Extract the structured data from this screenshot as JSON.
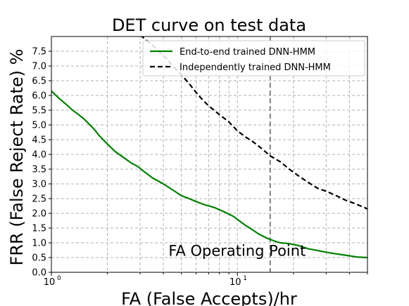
{
  "chart_data": {
    "type": "line",
    "title": "DET curve on test data",
    "xlabel": "FA (False Accepts)/hr",
    "ylabel": "FRR (False Reject Rate) %",
    "xscale": "log",
    "xlim": [
      1,
      50
    ],
    "ylim": [
      0,
      8
    ],
    "yticks": [
      0.0,
      0.5,
      1.0,
      1.5,
      2.0,
      2.5,
      3.0,
      3.5,
      4.0,
      4.5,
      5.0,
      5.5,
      6.0,
      6.5,
      7.0,
      7.5
    ],
    "ytick_labels": [
      "0.0",
      "0.5",
      "1.0",
      "1.5",
      "2.0",
      "2.5",
      "3.0",
      "3.5",
      "4.0",
      "4.5",
      "5.0",
      "5.5",
      "6.0",
      "6.5",
      "7.0",
      "7.5"
    ],
    "xticks": [
      {
        "value": 1,
        "base": "10",
        "exp": "0"
      },
      {
        "value": 10,
        "base": "10",
        "exp": "1"
      }
    ],
    "grid": true,
    "legend_position": "top-right",
    "series": [
      {
        "name": "End-to-end trained DNN-HMM",
        "color": "#008000",
        "style": "solid",
        "x": [
          1.0,
          1.1,
          1.2,
          1.3,
          1.4,
          1.5,
          1.7,
          1.8,
          2.0,
          2.2,
          2.5,
          2.7,
          2.9,
          3.1,
          3.5,
          4.0,
          4.6,
          5.0,
          5.5,
          6.0,
          6.6,
          7.5,
          8.5,
          9.5,
          11.0,
          12.0,
          13.0,
          14.5,
          16.0,
          17.0,
          18.5,
          21.0,
          24.0,
          28.0,
          32.0,
          38.0,
          44.0,
          50.0
        ],
        "y": [
          6.15,
          5.9,
          5.7,
          5.5,
          5.35,
          5.2,
          4.85,
          4.65,
          4.35,
          4.1,
          3.85,
          3.7,
          3.6,
          3.45,
          3.2,
          3.0,
          2.75,
          2.6,
          2.5,
          2.4,
          2.3,
          2.2,
          2.05,
          1.9,
          1.6,
          1.45,
          1.3,
          1.15,
          1.05,
          1.0,
          0.98,
          0.92,
          0.8,
          0.72,
          0.65,
          0.58,
          0.52,
          0.5
        ]
      },
      {
        "name": "Independently trained DNN-HMM",
        "color": "#000000",
        "style": "dashed",
        "x": [
          3.0,
          3.5,
          4.0,
          4.5,
          5.0,
          5.5,
          6.0,
          6.5,
          7.0,
          8.0,
          9.0,
          10.0,
          11.0,
          12.0,
          13.5,
          15.0,
          17.0,
          19.0,
          21.0,
          24.0,
          27.0,
          30.0,
          34.0,
          38.0,
          42.0,
          46.0,
          50.0
        ],
        "y": [
          8.05,
          7.7,
          7.35,
          7.0,
          6.7,
          6.4,
          6.1,
          5.85,
          5.65,
          5.35,
          5.1,
          4.8,
          4.6,
          4.45,
          4.2,
          3.95,
          3.75,
          3.5,
          3.3,
          3.05,
          2.85,
          2.75,
          2.6,
          2.45,
          2.35,
          2.25,
          2.15
        ]
      }
    ],
    "vline": {
      "x": 15,
      "color": "#808080",
      "style": "dashed"
    },
    "annotations": [
      {
        "text": "FA Operating Point",
        "x": 15,
        "y": 0.75
      }
    ]
  }
}
